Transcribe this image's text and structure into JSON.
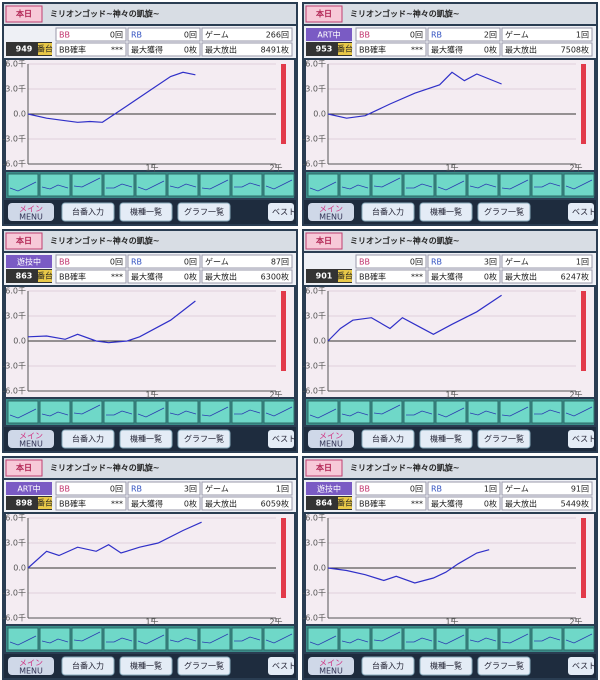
{
  "labels": {
    "today": "本日",
    "title": "ミリオンゴッド~神々の凱旋~",
    "unit": "番台",
    "bb": "BB",
    "rb": "RB",
    "game": "ゲーム",
    "bb_prob": "BB確率",
    "max_get": "最大獲得",
    "max_out": "最大放出",
    "menu_jp": "メイン",
    "menu_en": "MENU",
    "btn_number": "台番入力",
    "btn_models": "機種一覧",
    "btn_graphs": "グラフ一覧",
    "btn_best": "ベスト"
  },
  "axis": {
    "ylim": [
      -6000,
      6000
    ],
    "yticks": [
      {
        "value": 6000,
        "label": "6.0千"
      },
      {
        "value": 3000,
        "label": "3.0千"
      },
      {
        "value": 0,
        "label": "0.0"
      },
      {
        "value": -3000,
        "label": "-3.0千"
      },
      {
        "value": -6000,
        "label": "-6.0千"
      }
    ],
    "xlim": [
      0,
      2000
    ],
    "xticks": [
      {
        "value": 1000,
        "label": "1千"
      },
      {
        "value": 2000,
        "label": "2千"
      }
    ]
  },
  "panels": [
    {
      "number": "949",
      "status": null,
      "bb": "0回",
      "rb": "0回",
      "game": "266回",
      "bb_prob": "***",
      "max_get": "0枚",
      "max_out": "8491枚",
      "graph": {
        "x": [
          0,
          150,
          300,
          400,
          500,
          600,
          800,
          1000,
          1150,
          1250,
          1350
        ],
        "y": [
          0,
          -500,
          -800,
          -1000,
          -900,
          -1000,
          1000,
          3000,
          4500,
          5000,
          4700
        ]
      }
    },
    {
      "number": "953",
      "status": "ART中",
      "bb": "0回",
      "rb": "2回",
      "game": "1回",
      "bb_prob": "***",
      "max_get": "0枚",
      "max_out": "7508枚",
      "graph": {
        "x": [
          0,
          150,
          300,
          500,
          700,
          900,
          1000,
          1100,
          1200,
          1300,
          1400
        ],
        "y": [
          0,
          -500,
          -200,
          1200,
          2500,
          3500,
          5000,
          4000,
          4800,
          4200,
          3600
        ]
      }
    },
    {
      "number": "863",
      "status": "遊技中",
      "bb": "0回",
      "rb": "0回",
      "game": "87回",
      "bb_prob": "***",
      "max_get": "0枚",
      "max_out": "6300枚",
      "graph": {
        "x": [
          0,
          150,
          300,
          400,
          550,
          650,
          800,
          900,
          1150,
          1350
        ],
        "y": [
          500,
          600,
          200,
          800,
          0,
          -200,
          0,
          500,
          2500,
          4800
        ]
      }
    },
    {
      "number": "901",
      "status": null,
      "bb": "0回",
      "rb": "3回",
      "game": "1回",
      "bb_prob": "***",
      "max_get": "0枚",
      "max_out": "6247枚",
      "graph": {
        "x": [
          0,
          100,
          200,
          350,
          500,
          600,
          750,
          850,
          1000,
          1200,
          1400
        ],
        "y": [
          0,
          1500,
          2500,
          2800,
          1500,
          2800,
          1600,
          800,
          2000,
          3500,
          5500
        ]
      }
    },
    {
      "number": "898",
      "status": "ART中",
      "bb": "0回",
      "rb": "3回",
      "game": "1回",
      "bb_prob": "***",
      "max_get": "0枚",
      "max_out": "6059枚",
      "graph": {
        "x": [
          0,
          150,
          250,
          400,
          550,
          650,
          750,
          900,
          1050,
          1250,
          1400
        ],
        "y": [
          0,
          2000,
          1500,
          2500,
          2000,
          2800,
          1800,
          2500,
          3000,
          4500,
          5500
        ]
      }
    },
    {
      "number": "864",
      "status": "遊技中",
      "bb": "0回",
      "rb": "1回",
      "game": "91回",
      "bb_prob": "***",
      "max_get": "0枚",
      "max_out": "5449枚",
      "graph": {
        "x": [
          0,
          150,
          300,
          450,
          550,
          700,
          850,
          950,
          1050,
          1200,
          1300
        ],
        "y": [
          0,
          -300,
          -800,
          -1500,
          -1000,
          -1800,
          -1200,
          -500,
          500,
          1800,
          2200
        ]
      }
    }
  ]
}
